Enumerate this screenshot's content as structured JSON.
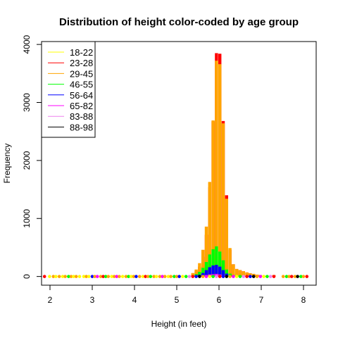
{
  "chart_data": {
    "type": "histogram",
    "title": "Distribution of height color-coded by age group",
    "xlabel": "Height (in feet)",
    "ylabel": "Frequency",
    "xlim": [
      1.8,
      8.3
    ],
    "ylim": [
      -150,
      4050
    ],
    "x_ticks": [
      2,
      3,
      4,
      5,
      6,
      7,
      8
    ],
    "y_ticks": [
      0,
      1000,
      2000,
      3000,
      4000
    ],
    "legend_position": "top-left",
    "bin_width": 0.08,
    "bins": [
      5.14,
      5.22,
      5.3,
      5.38,
      5.46,
      5.54,
      5.62,
      5.7,
      5.78,
      5.86,
      5.94,
      6.02,
      6.1,
      6.18,
      6.26,
      6.34,
      6.42,
      6.5,
      6.58,
      6.66,
      6.74,
      6.82,
      6.9,
      6.98,
      7.06,
      7.14,
      7.22,
      7.3
    ],
    "series": [
      {
        "name": "18-22",
        "color": "#ffff00",
        "values": [
          0,
          0,
          0,
          20,
          40,
          70,
          130,
          200,
          270,
          320,
          340,
          290,
          200,
          110,
          50,
          25,
          15,
          12,
          10,
          8,
          6,
          5,
          4,
          3,
          2,
          2,
          1,
          2
        ]
      },
      {
        "name": "23-28",
        "color": "#ff0000",
        "values": [
          0,
          0,
          0,
          40,
          90,
          170,
          340,
          720,
          1540,
          2670,
          3850,
          3840,
          2680,
          1400,
          460,
          210,
          130,
          110,
          90,
          70,
          55,
          45,
          30,
          25,
          10,
          10,
          5,
          25
        ]
      },
      {
        "name": "29-45",
        "color": "#ffa500",
        "values": [
          0,
          0,
          0,
          60,
          120,
          230,
          460,
          860,
          1630,
          2690,
          3720,
          3660,
          2640,
          1340,
          490,
          210,
          130,
          110,
          90,
          70,
          55,
          45,
          30,
          25,
          10,
          10,
          5,
          25
        ]
      },
      {
        "name": "46-55",
        "color": "#00ff00",
        "values": [
          0,
          0,
          0,
          15,
          40,
          80,
          150,
          250,
          380,
          470,
          520,
          430,
          280,
          120,
          50,
          25,
          15,
          12,
          10,
          8,
          6,
          5,
          4,
          3,
          2,
          2,
          1,
          1
        ]
      },
      {
        "name": "56-64",
        "color": "#0000ff",
        "values": [
          0,
          0,
          0,
          5,
          15,
          30,
          60,
          110,
          160,
          190,
          200,
          170,
          110,
          50,
          20,
          8,
          6,
          5,
          4,
          3,
          2,
          2,
          1,
          1,
          0,
          0,
          0,
          0
        ]
      },
      {
        "name": "65-82",
        "color": "#ff00ff",
        "values": [
          0,
          0,
          0,
          2,
          5,
          8,
          15,
          25,
          35,
          40,
          45,
          35,
          25,
          10,
          5,
          3,
          2,
          1,
          1,
          1,
          0,
          0,
          0,
          0,
          0,
          0,
          0,
          0
        ]
      },
      {
        "name": "83-88",
        "color": "#ee82ee",
        "values": [
          0,
          0,
          0,
          0,
          1,
          2,
          3,
          5,
          6,
          7,
          8,
          6,
          4,
          2,
          1,
          1,
          0,
          0,
          0,
          0,
          0,
          0,
          0,
          0,
          0,
          0,
          0,
          0
        ]
      },
      {
        "name": "88-98",
        "color": "#000000",
        "values": [
          0,
          0,
          0,
          0,
          0,
          1,
          1,
          2,
          2,
          3,
          3,
          2,
          2,
          1,
          1,
          0,
          0,
          0,
          0,
          0,
          0,
          0,
          0,
          0,
          0,
          0,
          0,
          0
        ]
      }
    ],
    "zero_row": {
      "x": [
        1.87,
        1.99,
        2.08,
        2.14,
        2.22,
        2.3,
        2.36,
        2.44,
        2.5,
        2.56,
        2.62,
        2.7,
        2.8,
        2.86,
        2.92,
        3.0,
        3.06,
        3.12,
        3.2,
        3.26,
        3.32,
        3.38,
        3.46,
        3.52,
        3.58,
        3.64,
        3.72,
        3.8,
        3.86,
        3.92,
        3.98,
        4.04,
        4.12,
        4.2,
        4.26,
        4.32,
        4.38,
        4.46,
        4.52,
        4.6,
        4.66,
        4.72,
        4.8,
        4.86,
        4.94,
        5.0,
        5.06,
        7.52,
        7.6,
        7.66,
        7.72,
        7.8,
        7.86,
        7.94,
        8.0,
        8.08
      ],
      "colors": [
        "#ff0000",
        "#ffff00",
        "#ffa500",
        "#ffff00",
        "#ffa500",
        "#ffff00",
        "#ffa500",
        "#00ff00",
        "#ffa500",
        "#ffff00",
        "#ffa500",
        "#ffff00",
        "#ffff00",
        "#ffa500",
        "#ffff00",
        "#0000ff",
        "#ffa500",
        "#ff00ff",
        "#ffa500",
        "#ff0000",
        "#00ff00",
        "#ffa500",
        "#ffff00",
        "#ffa500",
        "#ff00ff",
        "#ffa500",
        "#ffff00",
        "#ffa500",
        "#00ff00",
        "#ffff00",
        "#ffa500",
        "#0000ff",
        "#ffa500",
        "#ffff00",
        "#ff0000",
        "#ffa500",
        "#00ff00",
        "#ffa500",
        "#ffff00",
        "#ffa500",
        "#ff00ff",
        "#ffa500",
        "#ffff00",
        "#ffa500",
        "#00ff00",
        "#ffa500",
        "#0000ff",
        "#ffa500",
        "#00ff00",
        "#ffa500",
        "#ff0000",
        "#ffa500",
        "#000000",
        "#00ff00",
        "#ffa500",
        "#ff0000"
      ]
    }
  }
}
